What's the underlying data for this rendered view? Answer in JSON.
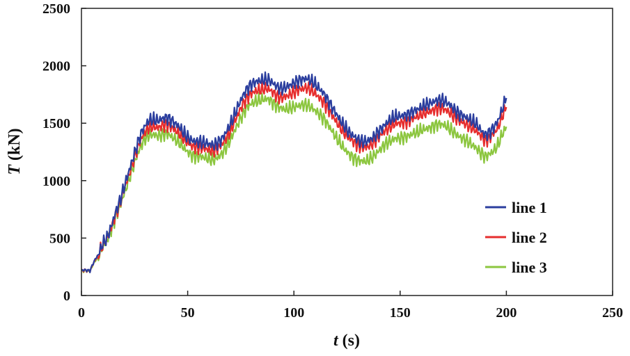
{
  "chart_data": {
    "type": "line",
    "title": "",
    "xlabel_var": "t",
    "xlabel_unit": " (s)",
    "ylabel_var": "T",
    "ylabel_unit": " (kN)",
    "xlim": [
      0,
      250
    ],
    "ylim": [
      0,
      2500
    ],
    "xticks": [
      0,
      50,
      100,
      150,
      200,
      250
    ],
    "yticks": [
      0,
      500,
      1000,
      1500,
      2000,
      2500
    ],
    "xtick_labels": [
      "0",
      "50",
      "100",
      "150",
      "200",
      "250"
    ],
    "ytick_labels": [
      "0",
      "500",
      "1000",
      "1500",
      "2000",
      "2500"
    ],
    "grid": false,
    "legend_position": "bottom-right",
    "x": [
      0,
      2,
      4,
      6,
      8,
      10,
      12,
      14,
      16,
      18,
      20,
      22,
      24,
      26,
      28,
      30,
      32,
      34,
      36,
      38,
      40,
      42,
      44,
      46,
      48,
      50,
      52,
      54,
      56,
      58,
      60,
      62,
      64,
      66,
      68,
      70,
      72,
      74,
      76,
      78,
      80,
      82,
      84,
      86,
      88,
      90,
      92,
      94,
      96,
      98,
      100,
      102,
      104,
      106,
      108,
      110,
      112,
      114,
      116,
      118,
      120,
      122,
      124,
      126,
      128,
      130,
      132,
      134,
      136,
      138,
      140,
      142,
      144,
      146,
      148,
      150,
      152,
      154,
      156,
      158,
      160,
      162,
      164,
      166,
      168,
      170,
      172,
      174,
      176,
      178,
      180,
      182,
      184,
      186,
      188,
      190,
      192,
      194,
      196,
      198,
      200
    ],
    "series": [
      {
        "name": "line 1",
        "color": "#2b3e9e",
        "values": [
          220,
          222,
          215,
          300,
          360,
          450,
          500,
          600,
          720,
          820,
          940,
          1060,
          1180,
          1300,
          1410,
          1480,
          1530,
          1530,
          1520,
          1540,
          1550,
          1530,
          1500,
          1470,
          1420,
          1380,
          1350,
          1340,
          1340,
          1330,
          1320,
          1310,
          1330,
          1360,
          1420,
          1490,
          1570,
          1660,
          1740,
          1800,
          1840,
          1860,
          1870,
          1880,
          1880,
          1850,
          1820,
          1800,
          1810,
          1830,
          1850,
          1870,
          1880,
          1890,
          1870,
          1840,
          1800,
          1760,
          1700,
          1640,
          1580,
          1520,
          1470,
          1420,
          1390,
          1360,
          1340,
          1340,
          1360,
          1390,
          1430,
          1470,
          1510,
          1540,
          1560,
          1560,
          1570,
          1580,
          1600,
          1620,
          1640,
          1660,
          1670,
          1690,
          1700,
          1700,
          1680,
          1650,
          1610,
          1580,
          1560,
          1540,
          1520,
          1490,
          1440,
          1400,
          1420,
          1460,
          1520,
          1620,
          1720
        ]
      },
      {
        "name": "line 2",
        "color": "#e62d2d",
        "values": [
          220,
          220,
          214,
          295,
          355,
          440,
          490,
          590,
          705,
          800,
          920,
          1030,
          1150,
          1260,
          1360,
          1430,
          1470,
          1470,
          1460,
          1480,
          1490,
          1470,
          1440,
          1410,
          1370,
          1330,
          1300,
          1290,
          1290,
          1280,
          1270,
          1260,
          1280,
          1310,
          1370,
          1430,
          1510,
          1590,
          1670,
          1720,
          1760,
          1780,
          1790,
          1800,
          1800,
          1770,
          1740,
          1720,
          1730,
          1750,
          1770,
          1790,
          1800,
          1810,
          1790,
          1760,
          1720,
          1680,
          1630,
          1570,
          1510,
          1460,
          1410,
          1370,
          1340,
          1310,
          1290,
          1290,
          1310,
          1340,
          1380,
          1420,
          1450,
          1480,
          1500,
          1500,
          1510,
          1520,
          1540,
          1560,
          1580,
          1590,
          1600,
          1620,
          1630,
          1630,
          1610,
          1580,
          1550,
          1520,
          1500,
          1480,
          1460,
          1430,
          1390,
          1350,
          1370,
          1410,
          1460,
          1560,
          1640
        ]
      },
      {
        "name": "line 3",
        "color": "#8cc63f",
        "values": [
          215,
          215,
          210,
          290,
          345,
          425,
          475,
          570,
          680,
          770,
          880,
          990,
          1100,
          1210,
          1300,
          1370,
          1400,
          1400,
          1390,
          1400,
          1410,
          1390,
          1360,
          1330,
          1290,
          1250,
          1220,
          1210,
          1210,
          1200,
          1190,
          1180,
          1200,
          1230,
          1290,
          1350,
          1430,
          1510,
          1580,
          1640,
          1670,
          1690,
          1700,
          1710,
          1710,
          1680,
          1650,
          1630,
          1620,
          1630,
          1640,
          1650,
          1660,
          1660,
          1640,
          1610,
          1580,
          1540,
          1490,
          1430,
          1370,
          1320,
          1270,
          1230,
          1200,
          1180,
          1170,
          1170,
          1190,
          1220,
          1260,
          1300,
          1330,
          1350,
          1370,
          1370,
          1380,
          1390,
          1410,
          1420,
          1440,
          1450,
          1460,
          1480,
          1490,
          1490,
          1470,
          1440,
          1410,
          1380,
          1360,
          1340,
          1310,
          1280,
          1240,
          1210,
          1230,
          1260,
          1310,
          1400,
          1470
        ]
      }
    ]
  }
}
